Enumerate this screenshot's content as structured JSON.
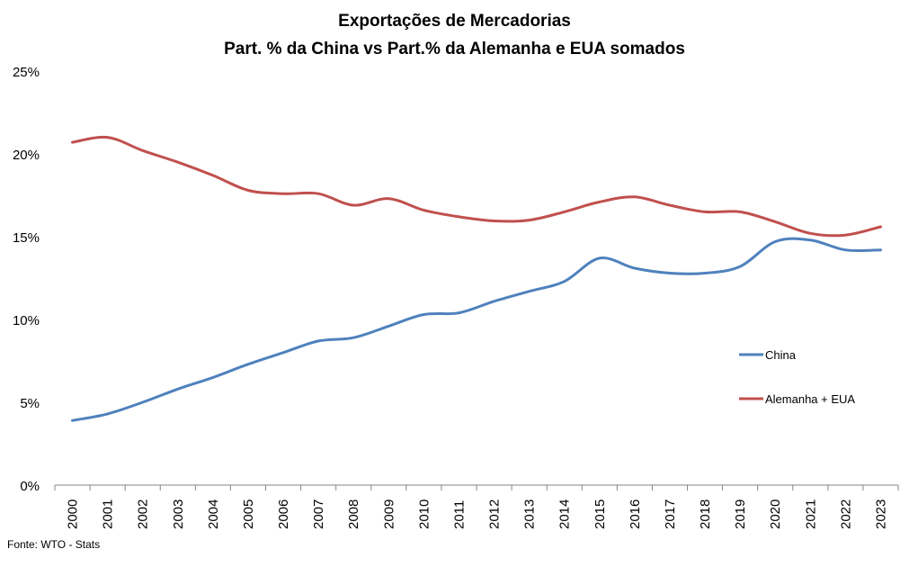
{
  "chart_data": {
    "type": "line",
    "title": "Exportações de Mercadorias",
    "subtitle": "Part. % da China vs Part.% da Alemanha e EUA somados",
    "x": [
      "2000",
      "2001",
      "2002",
      "2003",
      "2004",
      "2005",
      "2006",
      "2007",
      "2008",
      "2009",
      "2010",
      "2011",
      "2012",
      "2013",
      "2014",
      "2015",
      "2016",
      "2017",
      "2018",
      "2019",
      "2020",
      "2021",
      "2022",
      "2023"
    ],
    "y_ticks": [
      "0%",
      "5%",
      "10%",
      "15%",
      "20%",
      "25%"
    ],
    "ylim": [
      0,
      25
    ],
    "grid": false,
    "legend_position": "right",
    "series": [
      {
        "name": "China",
        "color": "#4F81BD",
        "values": [
          3.9,
          4.3,
          5.0,
          5.8,
          6.5,
          7.3,
          8.0,
          8.7,
          8.9,
          9.6,
          10.3,
          10.4,
          11.1,
          11.7,
          12.3,
          13.7,
          13.1,
          12.8,
          12.8,
          13.2,
          14.7,
          14.8,
          14.2,
          14.2
        ]
      },
      {
        "name": "Alemanha + EUA",
        "color": "#C0504D",
        "values": [
          20.7,
          21.0,
          20.2,
          19.5,
          18.7,
          17.8,
          17.6,
          17.6,
          16.9,
          17.3,
          16.6,
          16.2,
          15.95,
          16.0,
          16.5,
          17.1,
          17.4,
          16.9,
          16.5,
          16.5,
          15.9,
          15.2,
          15.1,
          15.6
        ]
      }
    ]
  },
  "footer": {
    "source": "Fonte: WTO - Stats"
  }
}
